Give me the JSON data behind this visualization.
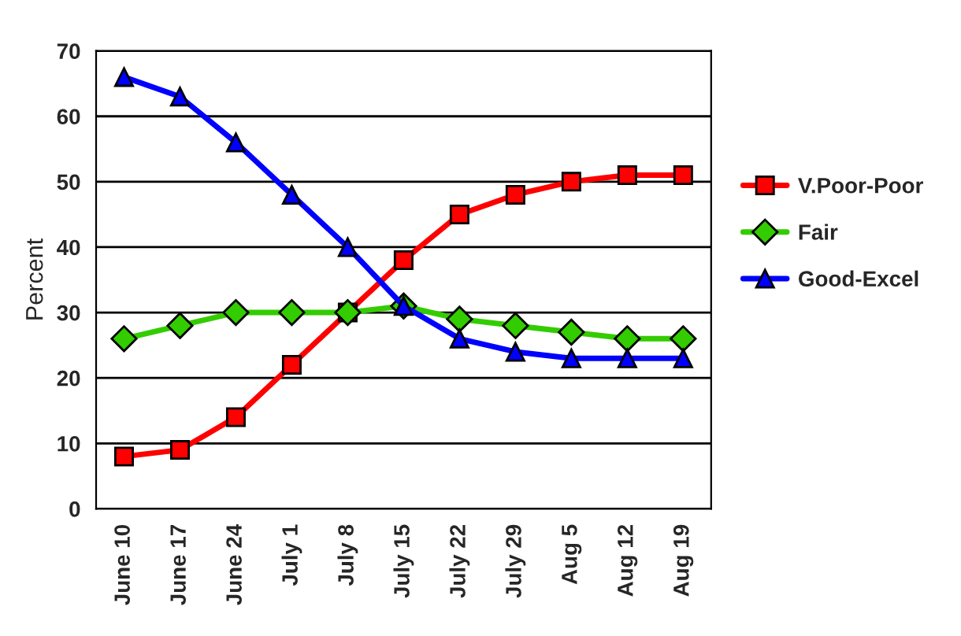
{
  "chart_data": {
    "type": "line",
    "ylabel": "Percent",
    "categories": [
      "June 10",
      "June 17",
      "June 24",
      "July 1",
      "July 8",
      "July 15",
      "July 22",
      "July 29",
      "Aug 5",
      "Aug 12",
      "Aug 19"
    ],
    "series": [
      {
        "name": "V.Poor-Poor",
        "color": "#ff0000",
        "marker": "square",
        "values": [
          8,
          9,
          14,
          22,
          30,
          38,
          45,
          48,
          50,
          51,
          51
        ]
      },
      {
        "name": "Fair",
        "color": "#33cc00",
        "marker": "diamond",
        "values": [
          26,
          28,
          30,
          30,
          30,
          31,
          29,
          28,
          27,
          26,
          26
        ]
      },
      {
        "name": "Good-Excel",
        "color": "#0000ff",
        "marker": "triangle",
        "values": [
          66,
          63,
          56,
          48,
          40,
          31,
          26,
          24,
          23,
          23,
          23
        ]
      }
    ],
    "ylim": [
      0,
      70
    ],
    "yticks": [
      0,
      10,
      20,
      30,
      40,
      50,
      60,
      70
    ],
    "grid": "y",
    "legend": "right"
  }
}
